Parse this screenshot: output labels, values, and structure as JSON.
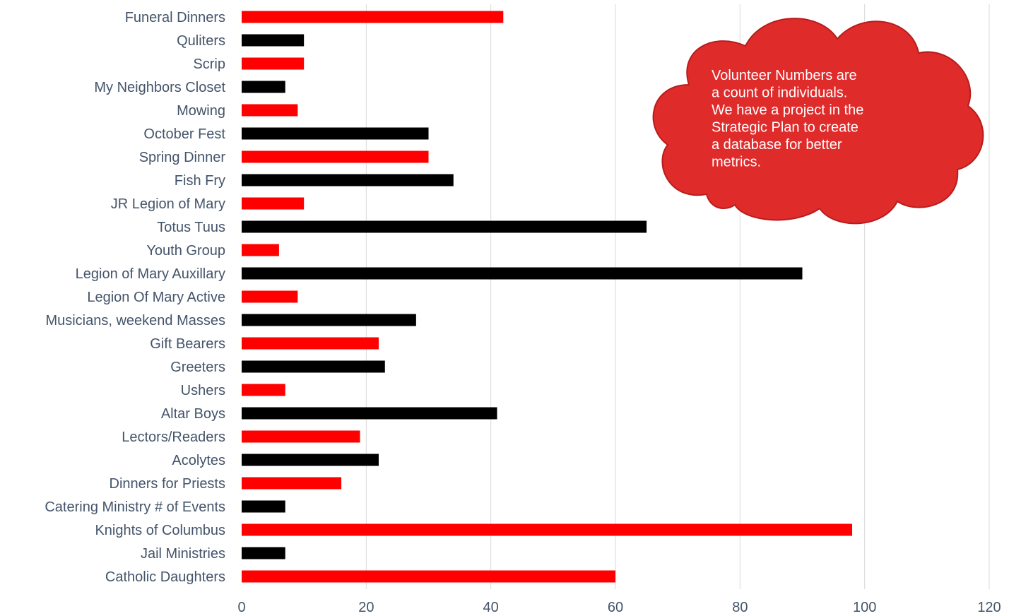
{
  "chart_data": {
    "type": "bar",
    "orientation": "horizontal",
    "categories": [
      "Funeral Dinners",
      "Quliters",
      "Scrip",
      "My Neighbors Closet",
      "Mowing",
      "October Fest",
      "Spring Dinner",
      "Fish Fry",
      "JR Legion of Mary",
      "Totus Tuus",
      "Youth Group",
      "Legion of Mary Auxillary",
      "Legion Of Mary Active",
      "Musicians, weekend Masses",
      "Gift Bearers",
      "Greeters",
      "Ushers",
      "Altar Boys",
      "Lectors/Readers",
      "Acolytes",
      "Dinners for Priests",
      "Catering Ministry # of Events",
      "Knights of Columbus",
      "Jail Ministries",
      "Catholic Daughters"
    ],
    "values": [
      42,
      10,
      10,
      7,
      9,
      30,
      30,
      34,
      10,
      65,
      6,
      90,
      9,
      28,
      22,
      23,
      7,
      41,
      19,
      22,
      16,
      7,
      98,
      7,
      60
    ],
    "bar_colors": [
      "#ff0000",
      "#000000"
    ],
    "xlim": [
      0,
      120
    ],
    "xticks": [
      0,
      20,
      40,
      60,
      80,
      100,
      120
    ],
    "grid": "vertical",
    "title": "",
    "xlabel": "",
    "ylabel": ""
  },
  "callout": {
    "lines": [
      "Volunteer Numbers are",
      "a count of individuals.",
      "We have a project in the",
      "Strategic Plan to create",
      "a database for better",
      "metrics."
    ],
    "fill_color": "#e02b2b",
    "stroke_color": "#b81c1c"
  }
}
